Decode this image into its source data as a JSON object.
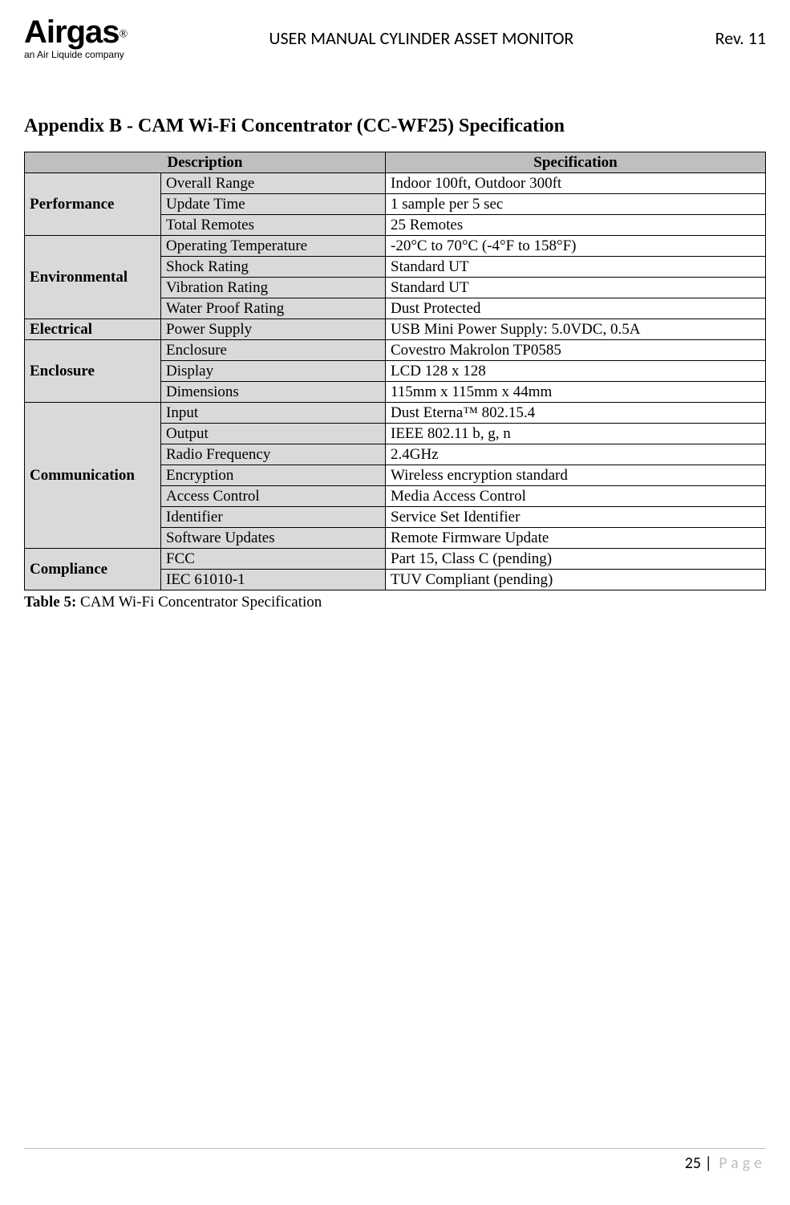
{
  "header": {
    "logo_main": "Airgas",
    "logo_reg": "®",
    "logo_sub": "an Air Liquide company",
    "title": "USER MANUAL CYLINDER ASSET MONITOR",
    "rev": "Rev. 11"
  },
  "section_heading": "Appendix B - CAM Wi-Fi Concentrator (CC-WF25) Specification",
  "table": {
    "header_desc": "Description",
    "header_spec": "Specification",
    "groups": [
      {
        "category": "Performance",
        "rows": [
          {
            "sub": "Overall Range",
            "val": "Indoor 100ft, Outdoor 300ft"
          },
          {
            "sub": "Update Time",
            "val": "1 sample per 5 sec"
          },
          {
            "sub": "Total Remotes",
            "val": "25 Remotes"
          }
        ]
      },
      {
        "category": "Environmental",
        "rows": [
          {
            "sub": "Operating Temperature",
            "val": "-20°C to 70°C (-4°F to 158°F)"
          },
          {
            "sub": "Shock Rating",
            "val": "Standard UT"
          },
          {
            "sub": "Vibration Rating",
            "val": "Standard UT"
          },
          {
            "sub": "Water Proof Rating",
            "val": "Dust Protected"
          }
        ]
      },
      {
        "category": "Electrical",
        "rows": [
          {
            "sub": "Power Supply",
            "val": "USB Mini Power Supply: 5.0VDC, 0.5A"
          }
        ]
      },
      {
        "category": "Enclosure",
        "rows": [
          {
            "sub": "Enclosure",
            "val": "Covestro Makrolon TP0585"
          },
          {
            "sub": "Display",
            "val": "LCD 128 x 128"
          },
          {
            "sub": "Dimensions",
            "val": "115mm x 115mm x 44mm"
          }
        ]
      },
      {
        "category": "Communication",
        "rows": [
          {
            "sub": "Input",
            "val": "Dust Eterna™ 802.15.4"
          },
          {
            "sub": "Output",
            "val": "IEEE 802.11 b, g, n"
          },
          {
            "sub": "Radio Frequency",
            "val": "2.4GHz"
          },
          {
            "sub": "Encryption",
            "val": "Wireless encryption standard"
          },
          {
            "sub": "Access Control",
            "val": "Media Access Control"
          },
          {
            "sub": "Identifier",
            "val": "Service Set Identifier"
          },
          {
            "sub": "Software Updates",
            "val": "Remote Firmware Update"
          }
        ]
      },
      {
        "category": "Compliance",
        "rows": [
          {
            "sub": "FCC",
            "val": "Part 15, Class C (pending)"
          },
          {
            "sub": "IEC 61010-1",
            "val": "TUV Compliant (pending)"
          }
        ]
      }
    ]
  },
  "caption_bold": "Table 5:",
  "caption_rest": " CAM Wi-Fi Concentrator Specification",
  "footer": {
    "page_num": "25",
    "sep": " | ",
    "page_label": "Page"
  },
  "colors": {
    "header_bg": "#bfbfbf",
    "cat_bg": "#d9d9d9",
    "border": "#000000",
    "page_label": "#bfbfbf"
  }
}
